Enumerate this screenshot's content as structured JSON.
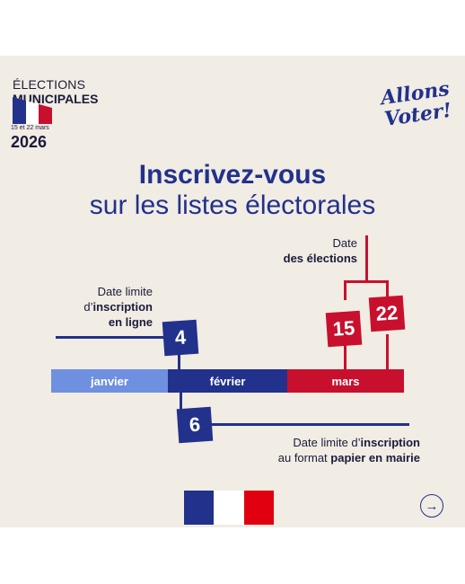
{
  "header": {
    "line1": "ÉLECTIONS",
    "line2": "MUNICIPALES",
    "dates": "15 et 22 mars",
    "year": "2026",
    "slogan": "Allons Voter!"
  },
  "title": {
    "line1": "Inscrivez-vous",
    "line2": "sur les listes électorales"
  },
  "timeline": {
    "months": [
      "janvier",
      "février",
      "mars"
    ],
    "online_day": "4",
    "paper_day": "6",
    "election_day_1": "15",
    "election_day_2": "22",
    "online_label": [
      "Date limite",
      "d’",
      "inscription",
      "en ligne"
    ],
    "election_label": [
      "Date",
      "des élections"
    ],
    "paper_label": [
      "Date limite d’",
      "inscription",
      "au format ",
      "papier en mairie"
    ]
  },
  "colors": {
    "blue": "#22318c",
    "red": "#c8102e",
    "light_blue": "#6f8fe0",
    "bg": "#f1ece4"
  },
  "icons": {
    "next": "arrow-right-circle-icon"
  }
}
